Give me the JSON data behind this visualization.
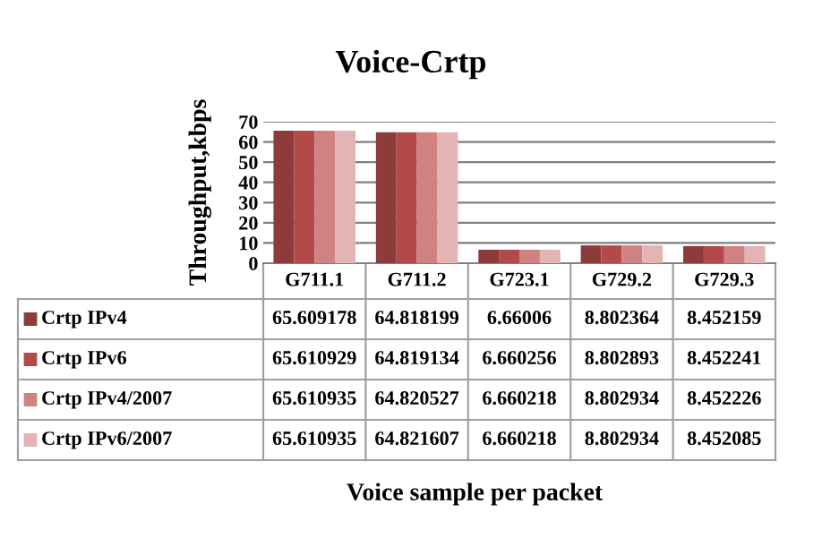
{
  "chart_data": {
    "type": "bar",
    "title": "Voice-Crtp",
    "annotations": [
      "Voice sample per packet"
    ],
    "ylabel": "Throughput,kbps",
    "categories": [
      "G711.1",
      "G711.2",
      "G723.1",
      "G729.2",
      "G729.3"
    ],
    "series": [
      {
        "name": "Crtp IPv4",
        "color": "#8e3b3b",
        "values": [
          65.609178,
          64.818199,
          6.66006,
          8.802364,
          8.452159
        ]
      },
      {
        "name": "Crtp IPv6",
        "color": "#b34a4a",
        "values": [
          65.610929,
          64.819134,
          6.660256,
          8.802893,
          8.452241
        ]
      },
      {
        "name": "Crtp IPv4/2007",
        "color": "#d08282",
        "values": [
          65.610935,
          64.820527,
          6.660218,
          8.802934,
          8.452226
        ]
      },
      {
        "name": "Crtp IPv6/2007",
        "color": "#e2b4b4",
        "values": [
          65.610935,
          64.821607,
          6.660218,
          8.802934,
          8.452085
        ]
      }
    ],
    "ylim": [
      0,
      70
    ],
    "yticks": [
      0,
      10,
      20,
      30,
      40,
      50,
      60,
      70
    ],
    "grid": "y",
    "data_labels": true,
    "legend": "bottom"
  }
}
